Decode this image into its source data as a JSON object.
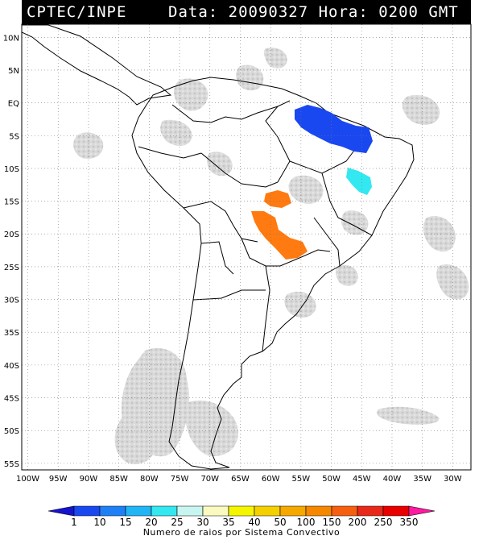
{
  "header": {
    "source": "CPTEC/INPE",
    "datetime": "Data: 20090327 Hora: 0200 GMT"
  },
  "map": {
    "lat_labels": [
      "10N",
      "5N",
      "EQ",
      "5S",
      "10S",
      "15S",
      "20S",
      "25S",
      "30S",
      "35S",
      "40S",
      "45S",
      "50S",
      "55S"
    ],
    "lon_labels": [
      "100W",
      "95W",
      "90W",
      "85W",
      "80W",
      "75W",
      "70W",
      "65W",
      "60W",
      "55W",
      "50W",
      "45W",
      "40W",
      "35W",
      "30W"
    ],
    "lat_range": [
      -56,
      12
    ],
    "lon_range": [
      -101,
      -27
    ],
    "grid": "dotted",
    "convective_systems": [
      {
        "region": "Amazon delta / Pará",
        "class": "10-15",
        "color": "#1a48f0"
      },
      {
        "region": "Bahia",
        "class": "25-30",
        "color": "#33e8f0"
      },
      {
        "region": "Mato Grosso do Sul / Paraguay",
        "class": "150-200",
        "color": "#ff7a10"
      }
    ]
  },
  "colorbar": {
    "labels": [
      "1",
      "10",
      "15",
      "20",
      "25",
      "30",
      "35",
      "40",
      "50",
      "100",
      "150",
      "200",
      "250",
      "350"
    ],
    "colors": [
      "#1414d0",
      "#1a48f0",
      "#1f80f5",
      "#22b5f5",
      "#33e8f0",
      "#c8f5f0",
      "#fafac0",
      "#f5f500",
      "#f5d000",
      "#f5a800",
      "#f58800",
      "#f56010",
      "#e82818",
      "#e80000",
      "#ff1aa0"
    ],
    "title": "Numero de raios por Sistema Convectivo"
  }
}
